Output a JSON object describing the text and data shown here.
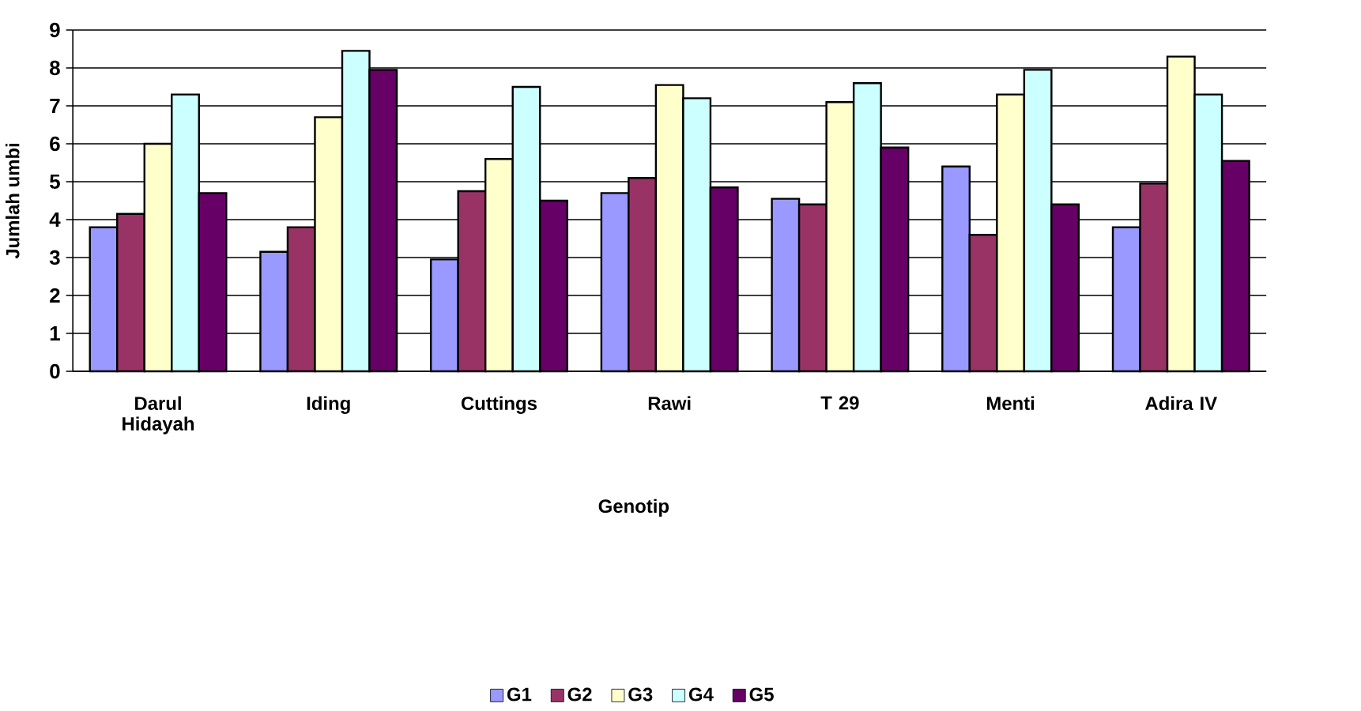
{
  "chart_data": {
    "type": "bar",
    "xlabel": "Genotip",
    "ylabel": "Jumlah umbi",
    "categories": [
      "Darul Hidayah",
      "Iding",
      "Cuttings",
      "Rawi",
      "T 29",
      "Menti",
      "Adira IV"
    ],
    "series": [
      {
        "name": "G1",
        "color": "#9999ff",
        "values": [
          3.8,
          3.15,
          2.95,
          4.7,
          4.55,
          5.4,
          3.8
        ]
      },
      {
        "name": "G2",
        "color": "#993366",
        "values": [
          4.15,
          3.8,
          4.75,
          5.1,
          4.4,
          3.6,
          4.95
        ]
      },
      {
        "name": "G3",
        "color": "#ffffcc",
        "values": [
          6.0,
          6.7,
          5.6,
          7.55,
          7.1,
          7.3,
          8.3
        ]
      },
      {
        "name": "G4",
        "color": "#ccffff",
        "values": [
          7.3,
          8.45,
          7.5,
          7.2,
          7.6,
          7.95,
          7.3
        ]
      },
      {
        "name": "G5",
        "color": "#660066",
        "values": [
          4.7,
          7.95,
          4.5,
          4.85,
          5.9,
          4.4,
          5.55
        ]
      }
    ],
    "ylim": [
      0,
      9
    ],
    "yticks": [
      0,
      1,
      2,
      3,
      4,
      5,
      6,
      7,
      8,
      9
    ],
    "grid": "y",
    "legend": "bottom"
  }
}
